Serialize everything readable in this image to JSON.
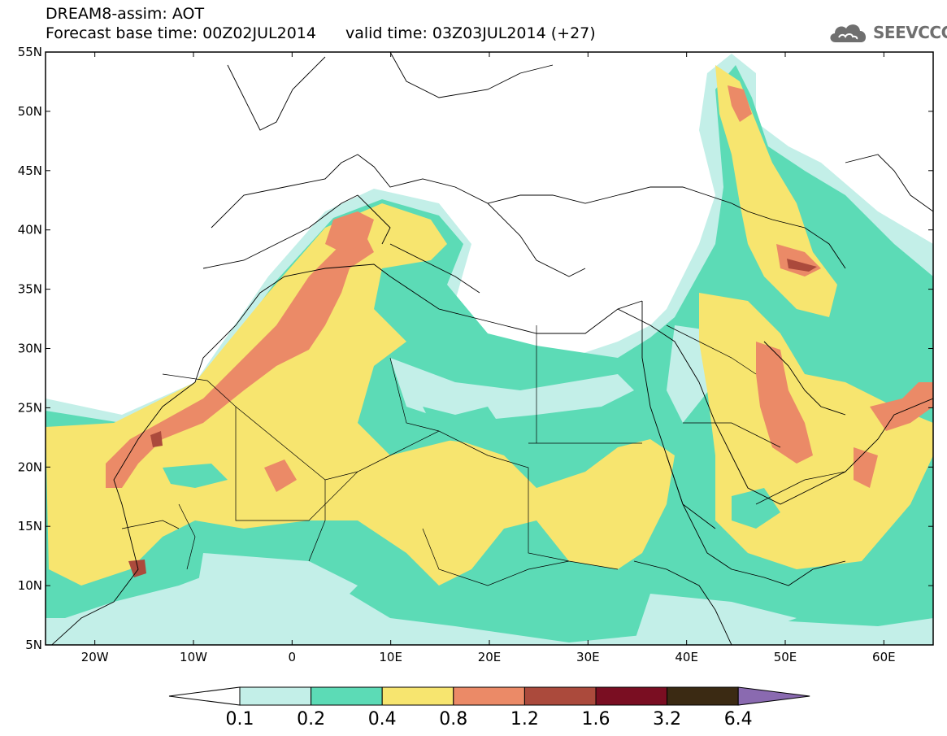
{
  "header": {
    "title": "DREAM8-assim: AOT",
    "base_time": "Forecast base time: 00Z02JUL2014",
    "valid_time": "valid time: 03Z03JUL2014 (+27)"
  },
  "logo": {
    "icon": "cloud-icon",
    "text": "SEEVCCC",
    "color": "#6f6f6f"
  },
  "map": {
    "lat_labels": [
      "55N",
      "50N",
      "45N",
      "40N",
      "35N",
      "30N",
      "25N",
      "20N",
      "15N",
      "10N",
      "5N"
    ],
    "lon_labels": [
      "20W",
      "10W",
      "0",
      "10E",
      "20E",
      "30E",
      "40E",
      "50E",
      "60E"
    ],
    "lat_range": [
      5,
      55
    ],
    "lon_range": [
      -25,
      65
    ],
    "field": "AOT",
    "background": "#ffffff",
    "coastline_color": "#000000"
  },
  "colorbar": {
    "labels": [
      "0.1",
      "0.2",
      "0.4",
      "0.8",
      "1.2",
      "1.6",
      "3.2",
      "6.4"
    ],
    "colors": [
      "#ffffff",
      "#c3efe8",
      "#5cdbb6",
      "#f7e56f",
      "#eb8a67",
      "#ab4a3c",
      "#7a0e22",
      "#3b2a13",
      "#8a6ab0"
    ]
  }
}
